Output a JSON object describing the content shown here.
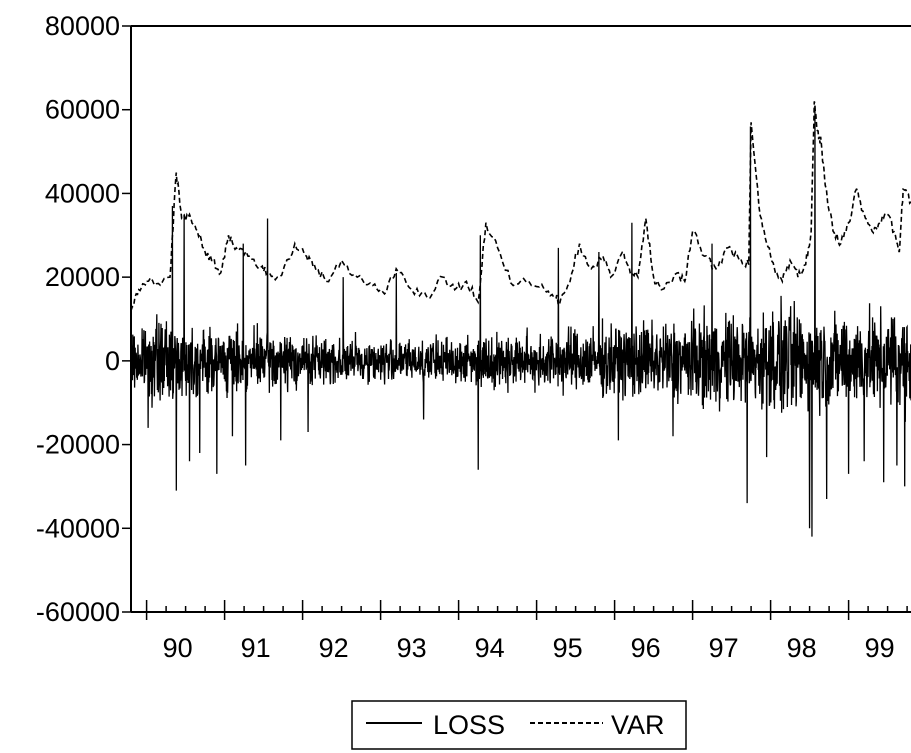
{
  "chart_data": {
    "type": "line",
    "title": "",
    "xlabel": "",
    "ylabel": "",
    "ylim": [
      -60000,
      80000
    ],
    "yticks": [
      80000,
      60000,
      40000,
      20000,
      0,
      -20000,
      -40000,
      -60000
    ],
    "ytick_labels": [
      "80000",
      "60000",
      "40000",
      "20000",
      "0",
      "-20000",
      "-40000",
      "-60000"
    ],
    "x_range": [
      1989.8,
      1999.8
    ],
    "xtick_labels": [
      "90",
      "91",
      "92",
      "93",
      "94",
      "95",
      "96",
      "97",
      "98",
      "99"
    ],
    "legend": {
      "placement": "bottom-center",
      "boxed": true
    },
    "grid": false,
    "series": [
      {
        "name": "LOSS",
        "style": "solid",
        "color": "#000000",
        "envelope_x": [
          1989.8,
          1990.05,
          1990.2,
          1990.35,
          1990.6,
          1991.0,
          1991.3,
          1991.6,
          1992.0,
          1992.5,
          1993.0,
          1993.5,
          1993.9,
          1994.3,
          1994.8,
          1995.2,
          1995.6,
          1996.0,
          1996.5,
          1997.0,
          1997.4,
          1997.8,
          1998.1,
          1998.3,
          1998.6,
          1999.0,
          1999.4,
          1999.8
        ],
        "envelope_amp": [
          9000,
          11000,
          14000,
          12000,
          11000,
          10000,
          9500,
          9000,
          8000,
          7500,
          7000,
          7000,
          7500,
          8000,
          8500,
          9500,
          10500,
          11500,
          12500,
          14000,
          15000,
          14500,
          18000,
          17000,
          15500,
          14500,
          15000,
          15500
        ],
        "spikes": [
          {
            "x": 1990.02,
            "y": -16000
          },
          {
            "x": 1990.33,
            "y": 37000
          },
          {
            "x": 1990.38,
            "y": -31000
          },
          {
            "x": 1990.48,
            "y": 35000
          },
          {
            "x": 1990.55,
            "y": -24000
          },
          {
            "x": 1990.68,
            "y": -22000
          },
          {
            "x": 1990.9,
            "y": -27000
          },
          {
            "x": 1991.1,
            "y": -18000
          },
          {
            "x": 1991.24,
            "y": 28000
          },
          {
            "x": 1991.27,
            "y": -25000
          },
          {
            "x": 1991.55,
            "y": 34000
          },
          {
            "x": 1991.72,
            "y": -19000
          },
          {
            "x": 1992.07,
            "y": -17000
          },
          {
            "x": 1992.52,
            "y": 20000
          },
          {
            "x": 1993.2,
            "y": 21000
          },
          {
            "x": 1993.55,
            "y": -14000
          },
          {
            "x": 1994.25,
            "y": -26000
          },
          {
            "x": 1994.28,
            "y": 30000
          },
          {
            "x": 1995.28,
            "y": 27000
          },
          {
            "x": 1995.8,
            "y": 26000
          },
          {
            "x": 1996.05,
            "y": -19000
          },
          {
            "x": 1996.22,
            "y": 33000
          },
          {
            "x": 1996.75,
            "y": -18000
          },
          {
            "x": 1997.25,
            "y": 28000
          },
          {
            "x": 1997.7,
            "y": -34000
          },
          {
            "x": 1997.74,
            "y": 56000
          },
          {
            "x": 1997.95,
            "y": -23000
          },
          {
            "x": 1998.5,
            "y": -40000
          },
          {
            "x": 1998.53,
            "y": -42000
          },
          {
            "x": 1998.57,
            "y": 61000
          },
          {
            "x": 1998.72,
            "y": -33000
          },
          {
            "x": 1999.0,
            "y": -27000
          },
          {
            "x": 1999.2,
            "y": -24000
          },
          {
            "x": 1999.45,
            "y": -29000
          },
          {
            "x": 1999.62,
            "y": -25000
          },
          {
            "x": 1999.72,
            "y": -30000
          }
        ]
      },
      {
        "name": "VAR",
        "style": "dashed",
        "color": "#000000",
        "x": [
          1989.8,
          1989.9,
          1990.0,
          1990.15,
          1990.3,
          1990.38,
          1990.45,
          1990.55,
          1990.65,
          1990.75,
          1990.85,
          1990.95,
          1991.05,
          1991.15,
          1991.3,
          1991.45,
          1991.55,
          1991.7,
          1991.9,
          1992.05,
          1992.15,
          1992.3,
          1992.5,
          1992.7,
          1992.9,
          1993.05,
          1993.2,
          1993.4,
          1993.6,
          1993.8,
          1993.95,
          1994.1,
          1994.25,
          1994.35,
          1994.5,
          1994.7,
          1994.9,
          1995.1,
          1995.25,
          1995.3,
          1995.4,
          1995.55,
          1995.7,
          1995.85,
          1995.95,
          1996.1,
          1996.2,
          1996.3,
          1996.4,
          1996.5,
          1996.6,
          1996.8,
          1996.9,
          1997.0,
          1997.15,
          1997.3,
          1997.45,
          1997.6,
          1997.72,
          1997.75,
          1997.85,
          1997.95,
          1998.05,
          1998.15,
          1998.25,
          1998.35,
          1998.45,
          1998.52,
          1998.56,
          1998.6,
          1998.65,
          1998.7,
          1998.8,
          1998.9,
          1999.0,
          1999.1,
          1999.2,
          1999.3,
          1999.4,
          1999.5,
          1999.6,
          1999.65,
          1999.7,
          1999.8
        ],
        "y": [
          12000,
          17000,
          19000,
          18500,
          20000,
          45000,
          34000,
          35000,
          31000,
          26000,
          24000,
          21000,
          30000,
          27000,
          25000,
          22000,
          21000,
          20000,
          28000,
          25000,
          23000,
          19000,
          24000,
          20000,
          18000,
          16000,
          22000,
          17000,
          15000,
          20000,
          17000,
          19000,
          14000,
          33000,
          27000,
          18000,
          19000,
          17000,
          15000,
          14000,
          18000,
          28000,
          22000,
          25000,
          20000,
          26000,
          21000,
          20000,
          34000,
          20000,
          17000,
          21000,
          19000,
          31000,
          25000,
          22000,
          27000,
          24000,
          23000,
          57000,
          37000,
          28000,
          22000,
          19000,
          24000,
          20000,
          23000,
          31000,
          62000,
          55000,
          52000,
          42000,
          31000,
          28000,
          33000,
          41000,
          35000,
          31000,
          33000,
          35000,
          30000,
          26000,
          41000,
          38000
        ]
      }
    ]
  }
}
